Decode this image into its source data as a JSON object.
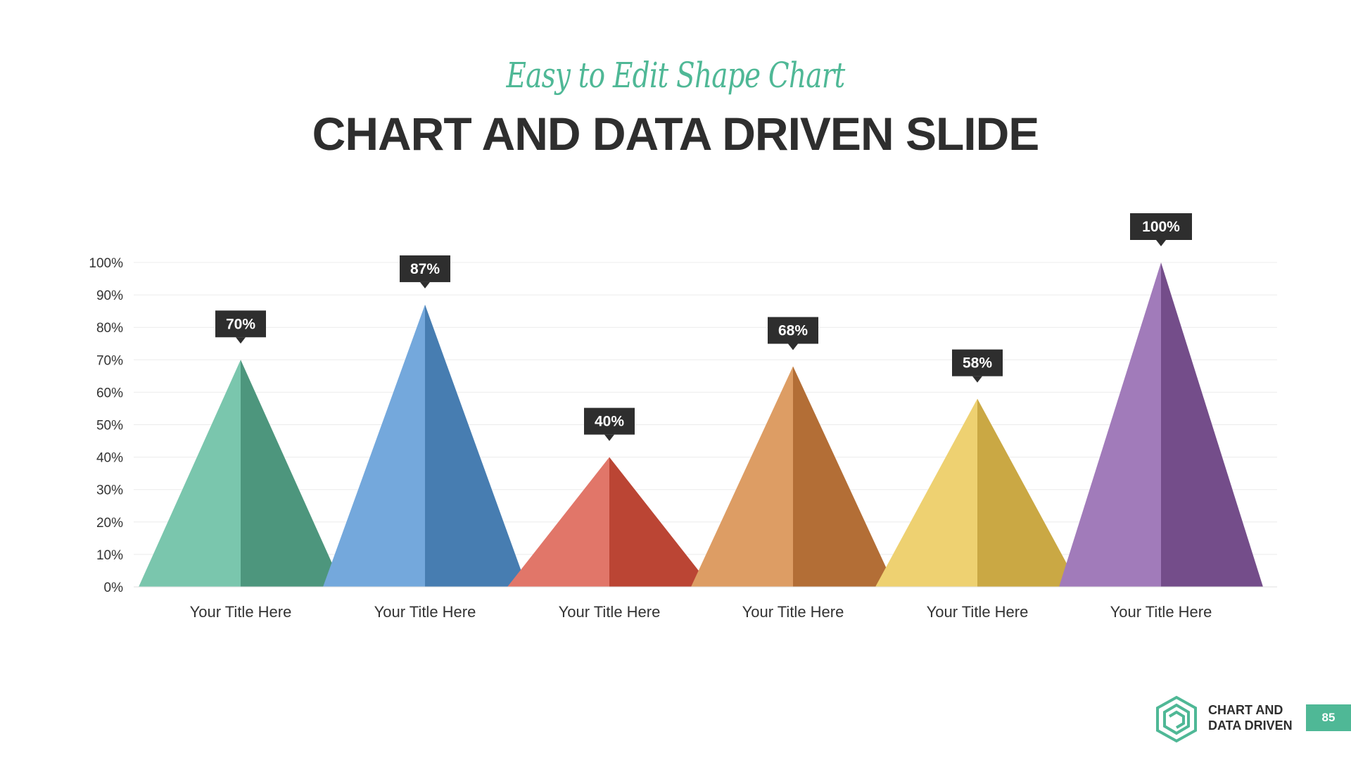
{
  "header": {
    "subtitle": "Easy to Edit Shape Chart",
    "title": "CHART AND DATA DRIVEN SLIDE"
  },
  "footer": {
    "brand_line1": "CHART AND",
    "brand_line2": "DATA DRIVEN",
    "page_number": "85",
    "accent_color": "#4fb896"
  },
  "chart_data": {
    "type": "bar",
    "shape": "triangle",
    "categories": [
      "Your Title Here",
      "Your Title Here",
      "Your Title Here",
      "Your Title Here",
      "Your Title Here",
      "Your Title Here"
    ],
    "values": [
      70,
      87,
      40,
      68,
      58,
      100
    ],
    "labels": [
      "70%",
      "87%",
      "40%",
      "68%",
      "58%",
      "100%"
    ],
    "y_ticks": [
      "0%",
      "10%",
      "20%",
      "30%",
      "40%",
      "50%",
      "60%",
      "70%",
      "80%",
      "90%",
      "100%"
    ],
    "ylim": [
      0,
      100
    ],
    "grid": true,
    "colors": [
      {
        "light": "#7ac6ad",
        "dark": "#4d967d"
      },
      {
        "light": "#74a8dc",
        "dark": "#477db1"
      },
      {
        "light": "#e17669",
        "dark": "#bb4534"
      },
      {
        "light": "#dd9d64",
        "dark": "#b36e36"
      },
      {
        "light": "#eed171",
        "dark": "#caa844"
      },
      {
        "light": "#a17bba",
        "dark": "#744d8a"
      }
    ],
    "label_bg": "#2e2e2e"
  }
}
